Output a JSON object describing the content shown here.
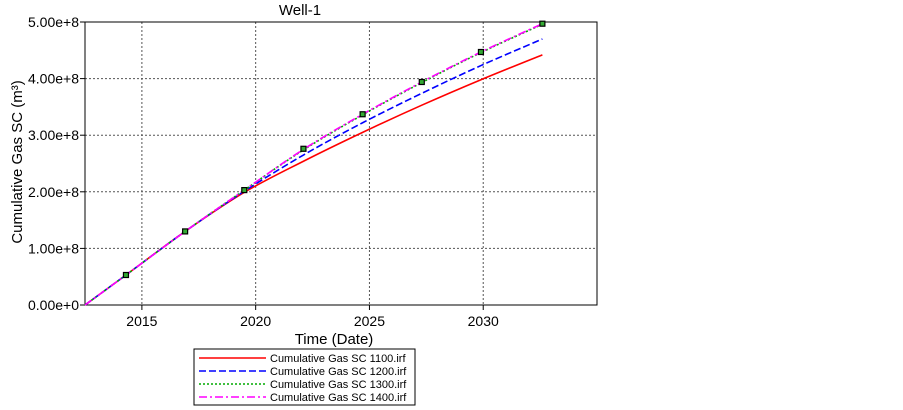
{
  "chart_data": {
    "type": "line",
    "title": "Well-1",
    "xlabel": "Time (Date)",
    "ylabel": "Cumulative Gas SC (m³)",
    "xlim": [
      2012.5,
      2035.0
    ],
    "ylim": [
      0,
      500000000
    ],
    "x_ticks": [
      2015,
      2020,
      2025,
      2030
    ],
    "x_tick_labels": [
      "2015",
      "2020",
      "2025",
      "2030"
    ],
    "y_ticks": [
      0,
      100000000,
      200000000,
      300000000,
      400000000,
      500000000
    ],
    "y_tick_labels": [
      "0.00e+0",
      "1.00e+8",
      "2.00e+8",
      "3.00e+8",
      "4.00e+8",
      "5.00e+8"
    ],
    "grid": true,
    "legend_position": "bottom",
    "series": [
      {
        "name": "Cumulative Gas SC 1100.irf",
        "color": "#ff0000",
        "dash": "solid",
        "x": [
          2012.5,
          2014.3,
          2016.9,
          2019.5,
          2022.1,
          2024.7,
          2027.3,
          2029.9,
          2032.6
        ],
        "values": [
          0,
          53000000,
          130000000,
          199000000,
          254000000,
          305000000,
          353000000,
          398000000,
          442000000
        ]
      },
      {
        "name": "Cumulative Gas SC 1200.irf",
        "color": "#0000ff",
        "dash": "dashed",
        "x": [
          2012.5,
          2014.3,
          2016.9,
          2019.5,
          2022.1,
          2024.7,
          2027.3,
          2029.9,
          2032.6
        ],
        "values": [
          0,
          53000000,
          130000000,
          201000000,
          265000000,
          322000000,
          374000000,
          423000000,
          470000000
        ]
      },
      {
        "name": "Cumulative Gas SC 1300.irf",
        "color": "#00aa00",
        "dash": "dotted",
        "x": [
          2012.5,
          2014.3,
          2016.9,
          2019.5,
          2022.1,
          2024.7,
          2027.3,
          2029.9,
          2032.6
        ],
        "values": [
          0,
          53000000,
          130000000,
          203000000,
          274000000,
          336000000,
          393000000,
          446000000,
          496000000
        ]
      },
      {
        "name": "Cumulative Gas SC 1400.irf",
        "color": "#ff00ff",
        "dash": "dashdot",
        "x": [
          2012.5,
          2014.3,
          2016.9,
          2019.5,
          2022.1,
          2024.7,
          2027.3,
          2029.9,
          2032.6
        ],
        "values": [
          0,
          53000000,
          130000000,
          203000000,
          275000000,
          337000000,
          394000000,
          447000000,
          497000000
        ]
      }
    ],
    "markers": {
      "color": "#000000",
      "fill": "#33aa33",
      "x": [
        2014.3,
        2016.9,
        2019.5,
        2022.1,
        2024.7,
        2027.3,
        2029.9,
        2032.6
      ],
      "values": [
        53000000,
        130000000,
        203000000,
        276000000,
        337000000,
        394000000,
        447000000,
        497000000
      ]
    }
  }
}
